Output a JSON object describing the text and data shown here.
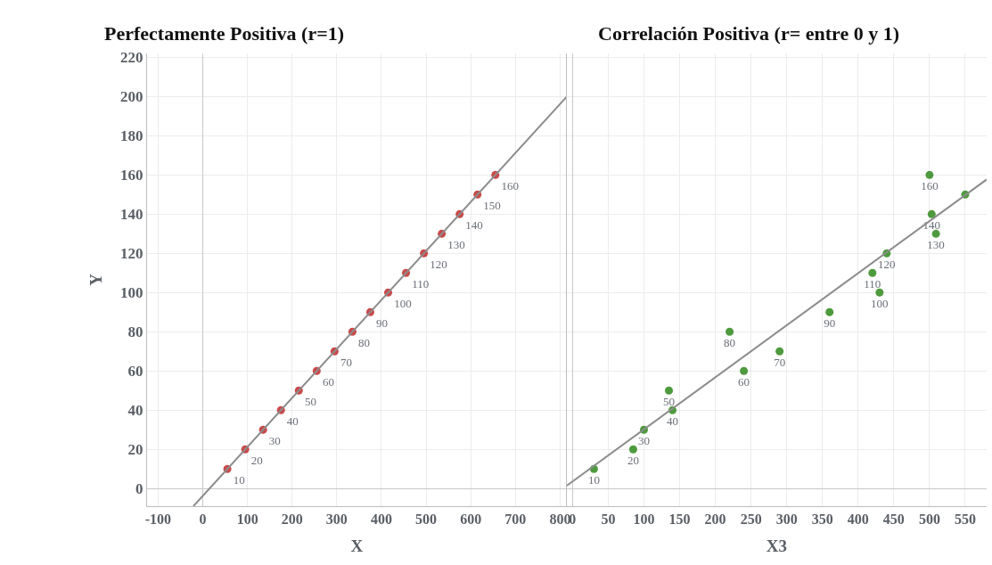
{
  "chart_data": [
    {
      "type": "scatter",
      "title": "Perfectamente Positiva (r=1)",
      "xlabel": "X",
      "ylabel": "Y",
      "xlim": [
        -125,
        815
      ],
      "xticks": [
        -100,
        0,
        100,
        200,
        300,
        400,
        500,
        600,
        700,
        800
      ],
      "ylim": [
        -9,
        222
      ],
      "yticks": [
        0,
        20,
        40,
        60,
        80,
        100,
        120,
        140,
        160,
        180,
        200,
        220
      ],
      "grid": true,
      "series": [
        {
          "color": "#c94a4a",
          "marker": "circle",
          "x": [
            55,
            95,
            135,
            175,
            215,
            255,
            295,
            335,
            375,
            415,
            455,
            495,
            535,
            575,
            615,
            655
          ],
          "values": [
            10,
            20,
            30,
            40,
            50,
            60,
            70,
            80,
            90,
            100,
            110,
            120,
            130,
            140,
            150,
            160
          ],
          "value_labels": [
            "10",
            "20",
            "30",
            "40",
            "50",
            "60",
            "70",
            "80",
            "90",
            "100",
            "110",
            "120",
            "130",
            "140",
            "150",
            "160"
          ]
        },
        {
          "type": "line",
          "color": "#8c8c8c",
          "x": [
            -21,
            815
          ],
          "values": [
            -9,
            200
          ]
        }
      ]
    },
    {
      "type": "scatter",
      "title": "Correlación Positiva (r= entre 0 y 1)",
      "xlabel": "X3",
      "xlim": [
        -8,
        580
      ],
      "xticks": [
        0,
        50,
        100,
        150,
        200,
        250,
        300,
        350,
        400,
        450,
        500,
        550
      ],
      "ylim": [
        -9,
        222
      ],
      "yticks": [
        0,
        20,
        40,
        60,
        80,
        100,
        120,
        140,
        160,
        180,
        200,
        220
      ],
      "tick_labels": "x",
      "grid": true,
      "series": [
        {
          "color": "#4e9a3e",
          "marker": "circle",
          "x": [
            30,
            85,
            100,
            140,
            135,
            240,
            290,
            220,
            360,
            430,
            420,
            440,
            509,
            503,
            550,
            500
          ],
          "values": [
            10,
            20,
            30,
            40,
            50,
            60,
            70,
            80,
            90,
            100,
            110,
            120,
            130,
            140,
            150,
            160
          ],
          "value_labels": [
            "10",
            "20",
            "30",
            "40",
            "50",
            "60",
            "70",
            "80",
            "90",
            "100",
            "110",
            "120",
            "130",
            "140",
            null,
            "160"
          ]
        },
        {
          "type": "line",
          "color": "#8c8c8c",
          "x": [
            -8,
            580
          ],
          "values": [
            1.5,
            157.7
          ]
        }
      ]
    }
  ]
}
